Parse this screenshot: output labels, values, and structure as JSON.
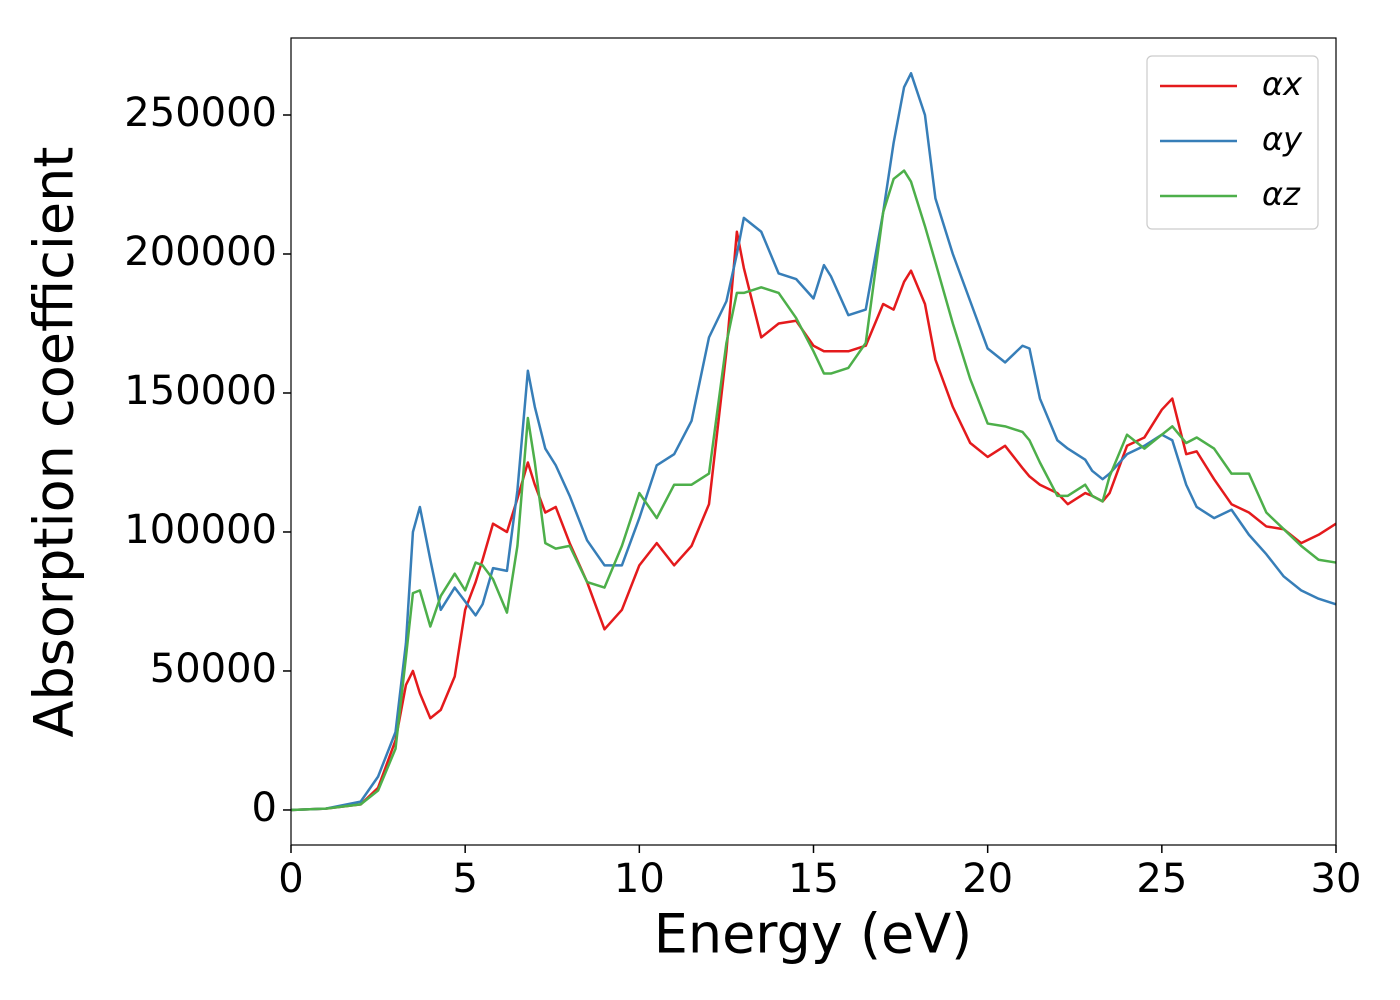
{
  "chart_data": {
    "type": "line",
    "xlabel": "Energy (eV)",
    "ylabel": "Absorption coefficient",
    "x": [
      0,
      1,
      2,
      2.5,
      3,
      3.3,
      3.5,
      3.7,
      4,
      4.3,
      4.7,
      5,
      5.3,
      5.5,
      5.8,
      6.2,
      6.5,
      6.8,
      7,
      7.3,
      7.6,
      8,
      8.5,
      9,
      9.5,
      10,
      10.5,
      11,
      11.5,
      12,
      12.5,
      12.8,
      13,
      13.5,
      14,
      14.5,
      15,
      15.3,
      15.5,
      16,
      16.5,
      17,
      17.3,
      17.6,
      17.8,
      18.2,
      18.5,
      19,
      19.5,
      20,
      20.5,
      21,
      21.2,
      21.5,
      22,
      22.3,
      22.8,
      23,
      23.3,
      23.5,
      24,
      24.5,
      25,
      25.3,
      25.7,
      26,
      26.5,
      27,
      27.5,
      28,
      28.5,
      29,
      29.5,
      30
    ],
    "series": [
      {
        "name": "αx",
        "color": "#e41a1c",
        "values": [
          0,
          500,
          2000,
          8000,
          25000,
          45000,
          50000,
          42000,
          33000,
          36000,
          48000,
          72000,
          82000,
          90000,
          103000,
          100000,
          112000,
          125000,
          117000,
          107000,
          109000,
          96000,
          82000,
          65000,
          72000,
          88000,
          96000,
          88000,
          95000,
          110000,
          165000,
          208000,
          195000,
          170000,
          175000,
          176000,
          167000,
          165000,
          165000,
          165000,
          167000,
          182000,
          180000,
          190000,
          194000,
          182000,
          162000,
          145000,
          132000,
          127000,
          131000,
          123000,
          120000,
          117000,
          114000,
          110000,
          114000,
          113000,
          111000,
          114000,
          131000,
          134000,
          144000,
          148000,
          128000,
          129000,
          119000,
          110000,
          107000,
          102000,
          101000,
          96000,
          99000,
          103000
        ]
      },
      {
        "name": "αy",
        "color": "#377eb8",
        "values": [
          0,
          500,
          3000,
          12000,
          28000,
          60000,
          100000,
          109000,
          90000,
          72000,
          80000,
          75000,
          70000,
          74000,
          87000,
          86000,
          115000,
          158000,
          145000,
          130000,
          124000,
          113000,
          97000,
          88000,
          88000,
          105000,
          124000,
          128000,
          140000,
          170000,
          183000,
          200000,
          213000,
          208000,
          193000,
          191000,
          184000,
          196000,
          192000,
          178000,
          180000,
          215000,
          240000,
          260000,
          265000,
          250000,
          220000,
          200000,
          183000,
          166000,
          161000,
          167000,
          166000,
          148000,
          133000,
          130000,
          126000,
          122000,
          119000,
          121000,
          128000,
          131000,
          135000,
          133000,
          117000,
          109000,
          105000,
          108000,
          99000,
          92000,
          84000,
          79000,
          76000,
          74000
        ]
      },
      {
        "name": "αz",
        "color": "#4daf4a",
        "values": [
          0,
          500,
          2000,
          7000,
          22000,
          55000,
          78000,
          79000,
          66000,
          77000,
          85000,
          79000,
          89000,
          88000,
          83000,
          71000,
          95000,
          141000,
          125000,
          96000,
          94000,
          95000,
          82000,
          80000,
          95000,
          114000,
          105000,
          117000,
          117000,
          121000,
          168000,
          186000,
          186000,
          188000,
          186000,
          177000,
          165000,
          157000,
          157000,
          159000,
          168000,
          215000,
          227000,
          230000,
          226000,
          210000,
          197000,
          175000,
          155000,
          139000,
          138000,
          136000,
          133000,
          125000,
          113000,
          113000,
          117000,
          113000,
          111000,
          120000,
          135000,
          130000,
          135000,
          138000,
          132000,
          134000,
          130000,
          121000,
          121000,
          107000,
          101000,
          95000,
          90000,
          89000
        ]
      }
    ],
    "xlim": [
      0,
      30
    ],
    "xticks": [
      0,
      5,
      10,
      15,
      20,
      25,
      30
    ],
    "ylim": [
      -12600,
      277700
    ],
    "yticks": [
      0,
      50000,
      100000,
      150000,
      200000,
      250000
    ],
    "grid": false,
    "legend": "upper right"
  }
}
